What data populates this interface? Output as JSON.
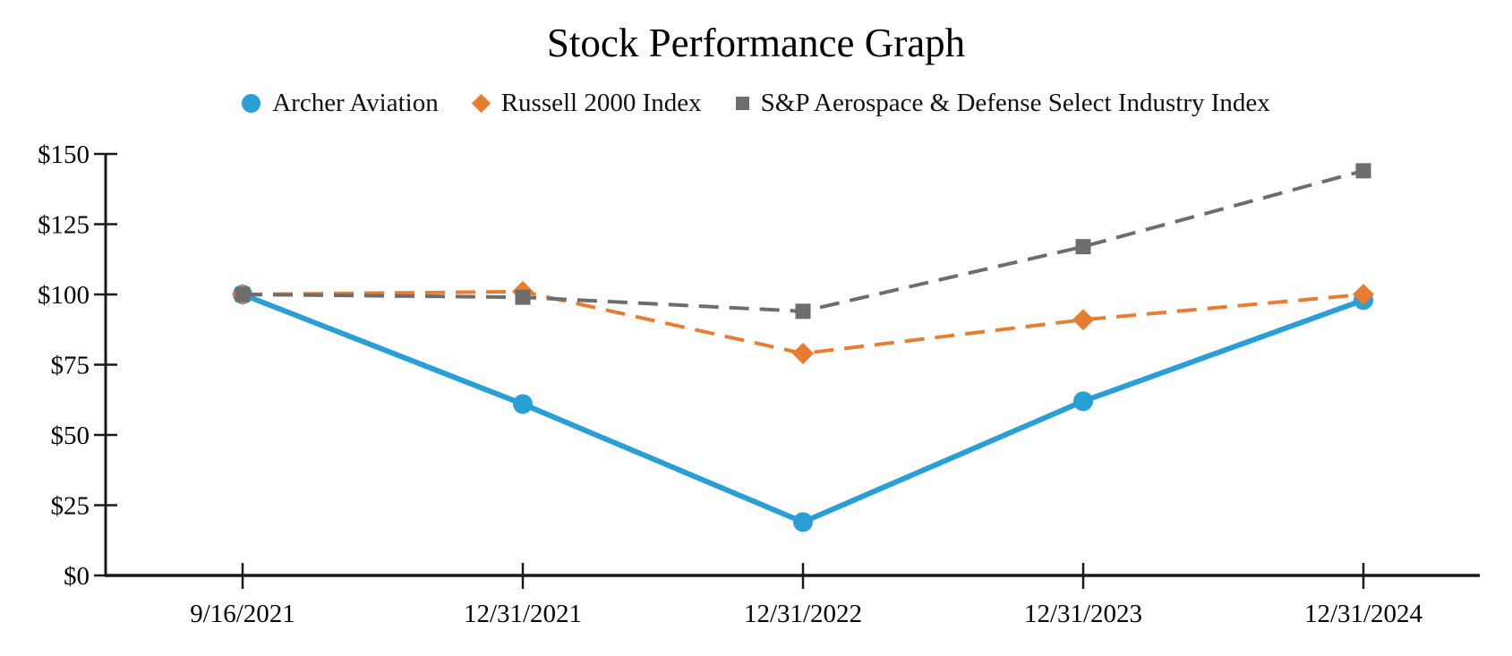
{
  "chart_data": {
    "type": "line",
    "title": "Stock Performance Graph",
    "xlabel": "",
    "ylabel": "",
    "ylim": [
      0,
      150
    ],
    "y_tick_step": 25,
    "y_ticks": [
      {
        "label": "$0",
        "value": 0
      },
      {
        "label": "$25",
        "value": 25
      },
      {
        "label": "$50",
        "value": 50
      },
      {
        "label": "$75",
        "value": 75
      },
      {
        "label": "$100",
        "value": 100
      },
      {
        "label": "$125",
        "value": 125
      },
      {
        "label": "$150",
        "value": 150
      }
    ],
    "categories": [
      "9/16/2021",
      "12/31/2021",
      "12/31/2022",
      "12/31/2023",
      "12/31/2024"
    ],
    "series": [
      {
        "name": "Archer Aviation",
        "color": "#2A9FD6",
        "marker": "circle",
        "line_style": "solid",
        "values": [
          100,
          61,
          19,
          62,
          98
        ]
      },
      {
        "name": "Russell 2000 Index",
        "color": "#E87D31",
        "marker": "diamond",
        "line_style": "dashed",
        "values": [
          100,
          101,
          79,
          91,
          100
        ]
      },
      {
        "name": "S&P Aerospace & Defense Select Industry Index",
        "color": "#6D6D6D",
        "marker": "square",
        "line_style": "dashed",
        "values": [
          100,
          99,
          94,
          117,
          144
        ]
      }
    ],
    "legend_position": "top",
    "grid": false,
    "axis_color": "#1a1a1a"
  }
}
